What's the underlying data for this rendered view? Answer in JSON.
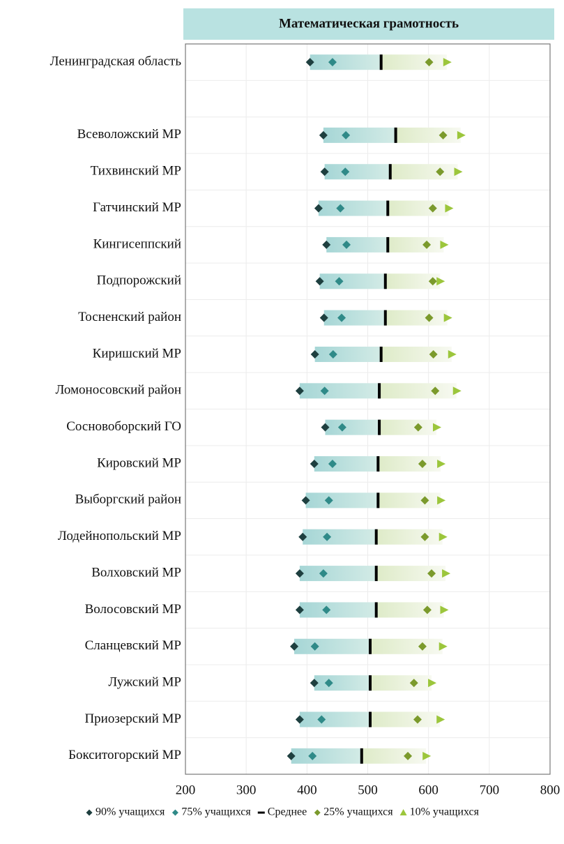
{
  "chart_data": {
    "type": "percentile-dot",
    "title": "Математическая грамотность",
    "categories": [
      "Ленинградская область",
      null,
      "Всеволожский  МР",
      "Тихвинский МР",
      "Гатчинский МР",
      "Кингисеппский",
      "Подпорожский",
      "Тосненский район",
      "Киришский МР",
      "Ломоносовский район",
      "Сосновоборский ГО",
      "Кировский МР",
      "Выборгский район",
      "Лодейнопольский МР",
      "Волховский МР",
      "Волосовский МР",
      "Сланцевский МР",
      "Лужский МР",
      "Приозерский МР",
      "Бокситогорский МР"
    ],
    "series": [
      {
        "name": "90% учащихся",
        "color": "#1e3f3f",
        "marker": "diamond",
        "values": [
          405,
          null,
          427,
          429,
          419,
          432,
          421,
          428,
          413,
          388,
          430,
          412,
          398,
          393,
          388,
          388,
          379,
          412,
          388,
          374
        ]
      },
      {
        "name": "75% учащихся",
        "color": "#2f8a88",
        "marker": "diamond",
        "values": [
          442,
          null,
          464,
          463,
          455,
          465,
          453,
          457,
          443,
          429,
          458,
          442,
          436,
          433,
          427,
          432,
          413,
          436,
          424,
          409
        ]
      },
      {
        "name": "Среднее",
        "color": "#000000",
        "marker": "dash",
        "values": [
          522,
          null,
          546,
          537,
          533,
          533,
          529,
          529,
          522,
          519,
          519,
          517,
          517,
          514,
          514,
          514,
          504,
          504,
          504,
          490
        ]
      },
      {
        "name": "25% учащихся",
        "color": "#7b9a2c",
        "marker": "diamond",
        "values": [
          601,
          null,
          624,
          619,
          607,
          597,
          607,
          601,
          608,
          611,
          583,
          590,
          594,
          594,
          605,
          598,
          590,
          576,
          582,
          566
        ]
      },
      {
        "name": "10% учащихся",
        "color": "#9cc63c",
        "marker": "triangle",
        "values": [
          630,
          null,
          653,
          648,
          633,
          625,
          619,
          631,
          638,
          646,
          613,
          620,
          620,
          623,
          628,
          625,
          623,
          605,
          619,
          596
        ]
      }
    ],
    "xlim": [
      200,
      800
    ],
    "xticks": [
      200,
      300,
      400,
      500,
      600,
      700,
      800
    ],
    "grid": true,
    "legend": "bottom"
  }
}
